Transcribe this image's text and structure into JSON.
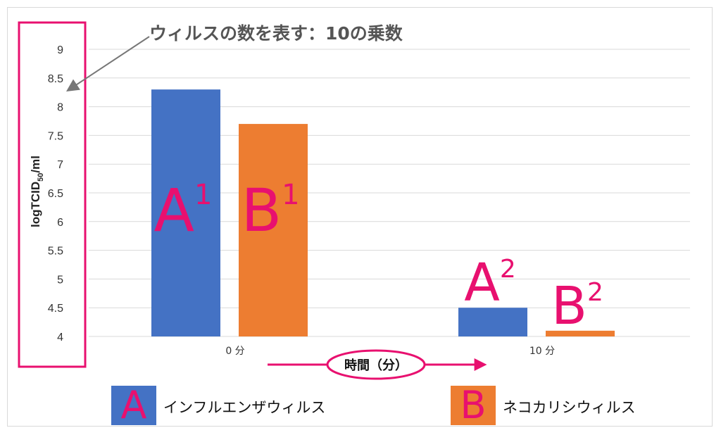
{
  "chart_data": {
    "type": "bar",
    "categories": [
      "0 分",
      "10 分"
    ],
    "series": [
      {
        "name": "インフルエンザウィルス",
        "key": "A",
        "color": "#4472c4",
        "values": [
          8.3,
          4.5
        ]
      },
      {
        "name": "ネコカリシウィルス",
        "key": "B",
        "color": "#ed7d31",
        "values": [
          7.7,
          4.1
        ]
      }
    ],
    "ylabel_main": "logTCID",
    "ylabel_sub": "50",
    "ylabel_tail": "/ml",
    "ylim": [
      4,
      9
    ],
    "yticks": [
      "4",
      "4.5",
      "5",
      "5.5",
      "6",
      "6.5",
      "7",
      "7.5",
      "8",
      "8.5",
      "9"
    ],
    "grid": true,
    "bar_labels": [
      {
        "letter": "A",
        "sup": "1"
      },
      {
        "letter": "B",
        "sup": "1"
      },
      {
        "letter": "A",
        "sup": "2"
      },
      {
        "letter": "B",
        "sup": "2"
      }
    ]
  },
  "annotation": {
    "title": "ウィルスの数を表す：10の乗数",
    "xaxis_callout": "時間（分）"
  },
  "legend": [
    {
      "letter": "A",
      "label": "インフルエンザウィルス",
      "color": "#4472c4"
    },
    {
      "letter": "B",
      "label": "ネコカリシウィルス",
      "color": "#ed7d31"
    }
  ],
  "colors": {
    "accent": "#e8106f",
    "grid": "#d9d9d9",
    "text": "#333333"
  }
}
